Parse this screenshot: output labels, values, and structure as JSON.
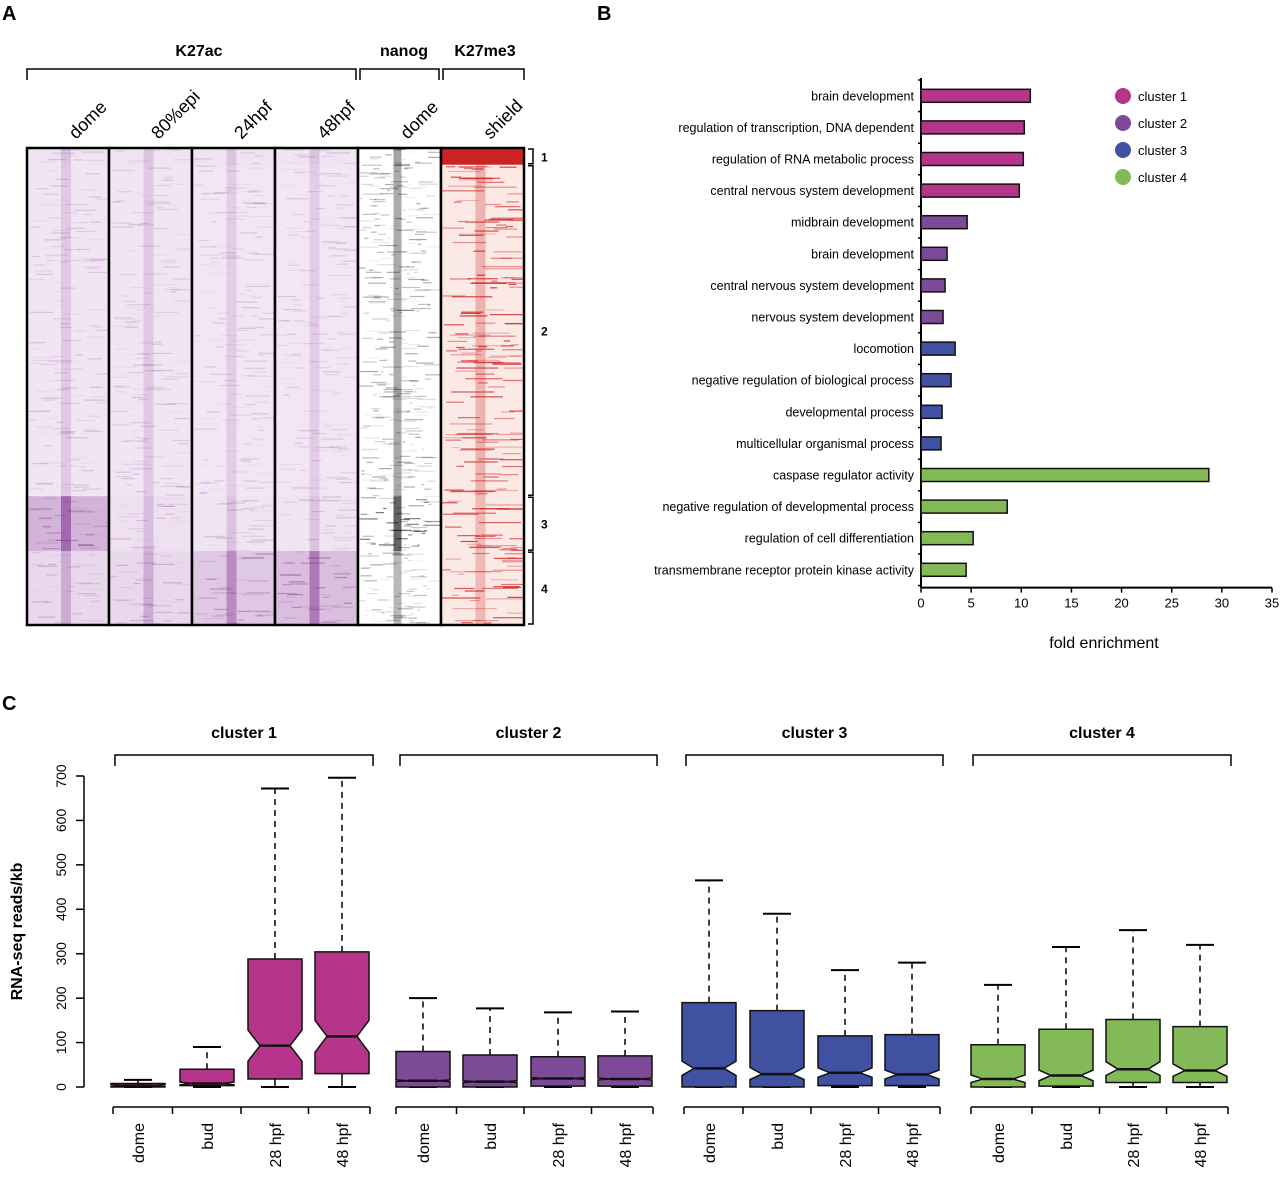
{
  "figure": {
    "panel_labels": [
      "A",
      "B",
      "C"
    ]
  },
  "chart_data": [
    {
      "type": "heatmap",
      "panel": "A",
      "groups": [
        {
          "label": "K27ac",
          "columns": [
            "dome",
            "80%epi",
            "24hpf",
            "48hpf"
          ]
        },
        {
          "label": "nanog",
          "columns": [
            "dome"
          ]
        },
        {
          "label": "K27me3",
          "columns": [
            "shield"
          ]
        }
      ],
      "row_clusters": [
        {
          "label": "1",
          "fraction": 0.035
        },
        {
          "label": "2",
          "fraction": 0.695
        },
        {
          "label": "3",
          "fraction": 0.115
        },
        {
          "label": "4",
          "fraction": 0.155
        }
      ],
      "colors": {
        "K27ac": "#7b2a8c",
        "nanog": "#000000",
        "K27me3": "#cc2222"
      },
      "intensity": {
        "K27ac": [
          [
            0.15,
            0.15,
            0.15,
            0.15
          ],
          [
            0.12,
            0.12,
            0.1,
            0.1
          ],
          [
            0.85,
            0.2,
            0.15,
            0.15
          ],
          [
            0.3,
            0.3,
            0.55,
            0.7
          ]
        ],
        "nanog": [
          0.5,
          0.45,
          0.95,
          0.35
        ],
        "K27me3": [
          1.0,
          0.35,
          0.3,
          0.3
        ]
      }
    },
    {
      "type": "bar",
      "orientation": "horizontal",
      "panel": "B",
      "title": "",
      "xlabel": "fold enrichment",
      "ylabel": "",
      "xlim": [
        0,
        35
      ],
      "xticks": [
        "0",
        "5",
        "10",
        "15",
        "20",
        "25",
        "30",
        "35"
      ],
      "legend": {
        "position": "top-right",
        "entries": [
          {
            "label": "cluster 1",
            "color": "#b5358a"
          },
          {
            "label": "cluster 2",
            "color": "#7d4a98"
          },
          {
            "label": "cluster 3",
            "color": "#3f51a0"
          },
          {
            "label": "cluster 4",
            "color": "#84b957"
          }
        ]
      },
      "categories": [
        "brain development",
        "regulation of transcription, DNA dependent",
        "regulation of RNA metabolic process",
        "central nervous system development",
        "midbrain development",
        "brain development",
        "central nervous system development",
        "nervous system development",
        "locomotion",
        "negative regulation of biological process",
        "developmental process",
        "multicellular organismal process",
        "caspase regulator activity",
        "negative regulation of developmental process",
        "regulation of cell differentiation",
        "transmembrane receptor protein kinase activity"
      ],
      "values": [
        10.9,
        10.3,
        10.2,
        9.8,
        4.6,
        2.6,
        2.4,
        2.2,
        3.4,
        3.0,
        2.1,
        2.0,
        28.7,
        8.6,
        5.2,
        4.5
      ],
      "cluster": [
        1,
        1,
        1,
        1,
        2,
        2,
        2,
        2,
        3,
        3,
        3,
        3,
        4,
        4,
        4,
        4
      ]
    },
    {
      "type": "boxplot",
      "panel": "C",
      "ylabel": "RNA-seq reads/kb",
      "ylim": [
        0,
        700
      ],
      "yticks": [
        "0",
        "100",
        "200",
        "300",
        "400",
        "500",
        "600",
        "700"
      ],
      "notched": true,
      "groups": [
        {
          "title": "cluster 1",
          "color": "#b5358a",
          "boxes": [
            {
              "label": "dome",
              "min": 0,
              "q1": 0,
              "median": 3,
              "q3": 8,
              "max": 16,
              "notch_lo": 1,
              "notch_hi": 5
            },
            {
              "label": "bud",
              "min": 0,
              "q1": 3,
              "median": 8,
              "q3": 40,
              "max": 90,
              "notch_lo": 5,
              "notch_hi": 11
            },
            {
              "label": "28 hpf",
              "min": 0,
              "q1": 18,
              "median": 93,
              "q3": 288,
              "max": 672,
              "notch_lo": 58,
              "notch_hi": 128
            },
            {
              "label": "48 hpf",
              "min": 0,
              "q1": 30,
              "median": 114,
              "q3": 304,
              "max": 696,
              "notch_lo": 78,
              "notch_hi": 150
            }
          ]
        },
        {
          "title": "cluster 2",
          "color": "#7d4a98",
          "boxes": [
            {
              "label": "dome",
              "min": 0,
              "q1": 0,
              "median": 14,
              "q3": 80,
              "max": 200,
              "notch_lo": 12,
              "notch_hi": 16
            },
            {
              "label": "bud",
              "min": 0,
              "q1": 0,
              "median": 12,
              "q3": 72,
              "max": 177,
              "notch_lo": 10,
              "notch_hi": 14
            },
            {
              "label": "28 hpf",
              "min": 0,
              "q1": 2,
              "median": 19,
              "q3": 68,
              "max": 168,
              "notch_lo": 17,
              "notch_hi": 21
            },
            {
              "label": "48 hpf",
              "min": 0,
              "q1": 2,
              "median": 18,
              "q3": 70,
              "max": 170,
              "notch_lo": 16,
              "notch_hi": 20
            }
          ]
        },
        {
          "title": "cluster 3",
          "color": "#3f51a0",
          "boxes": [
            {
              "label": "dome",
              "min": 0,
              "q1": 0,
              "median": 42,
              "q3": 190,
              "max": 465,
              "notch_lo": 26,
              "notch_hi": 58
            },
            {
              "label": "bud",
              "min": 0,
              "q1": 0,
              "median": 29,
              "q3": 172,
              "max": 390,
              "notch_lo": 17,
              "notch_hi": 44
            },
            {
              "label": "28 hpf",
              "min": 0,
              "q1": 3,
              "median": 32,
              "q3": 115,
              "max": 263,
              "notch_lo": 22,
              "notch_hi": 43
            },
            {
              "label": "48 hpf",
              "min": 0,
              "q1": 3,
              "median": 28,
              "q3": 118,
              "max": 280,
              "notch_lo": 18,
              "notch_hi": 38
            }
          ]
        },
        {
          "title": "cluster 4",
          "color": "#84b957",
          "boxes": [
            {
              "label": "dome",
              "min": 0,
              "q1": 0,
              "median": 18,
              "q3": 95,
              "max": 230,
              "notch_lo": 10,
              "notch_hi": 27
            },
            {
              "label": "bud",
              "min": 0,
              "q1": 2,
              "median": 26,
              "q3": 130,
              "max": 315,
              "notch_lo": 14,
              "notch_hi": 38
            },
            {
              "label": "28 hpf",
              "min": 0,
              "q1": 10,
              "median": 40,
              "q3": 152,
              "max": 353,
              "notch_lo": 26,
              "notch_hi": 57
            },
            {
              "label": "48 hpf",
              "min": 0,
              "q1": 10,
              "median": 37,
              "q3": 136,
              "max": 320,
              "notch_lo": 24,
              "notch_hi": 52
            }
          ]
        }
      ]
    }
  ]
}
